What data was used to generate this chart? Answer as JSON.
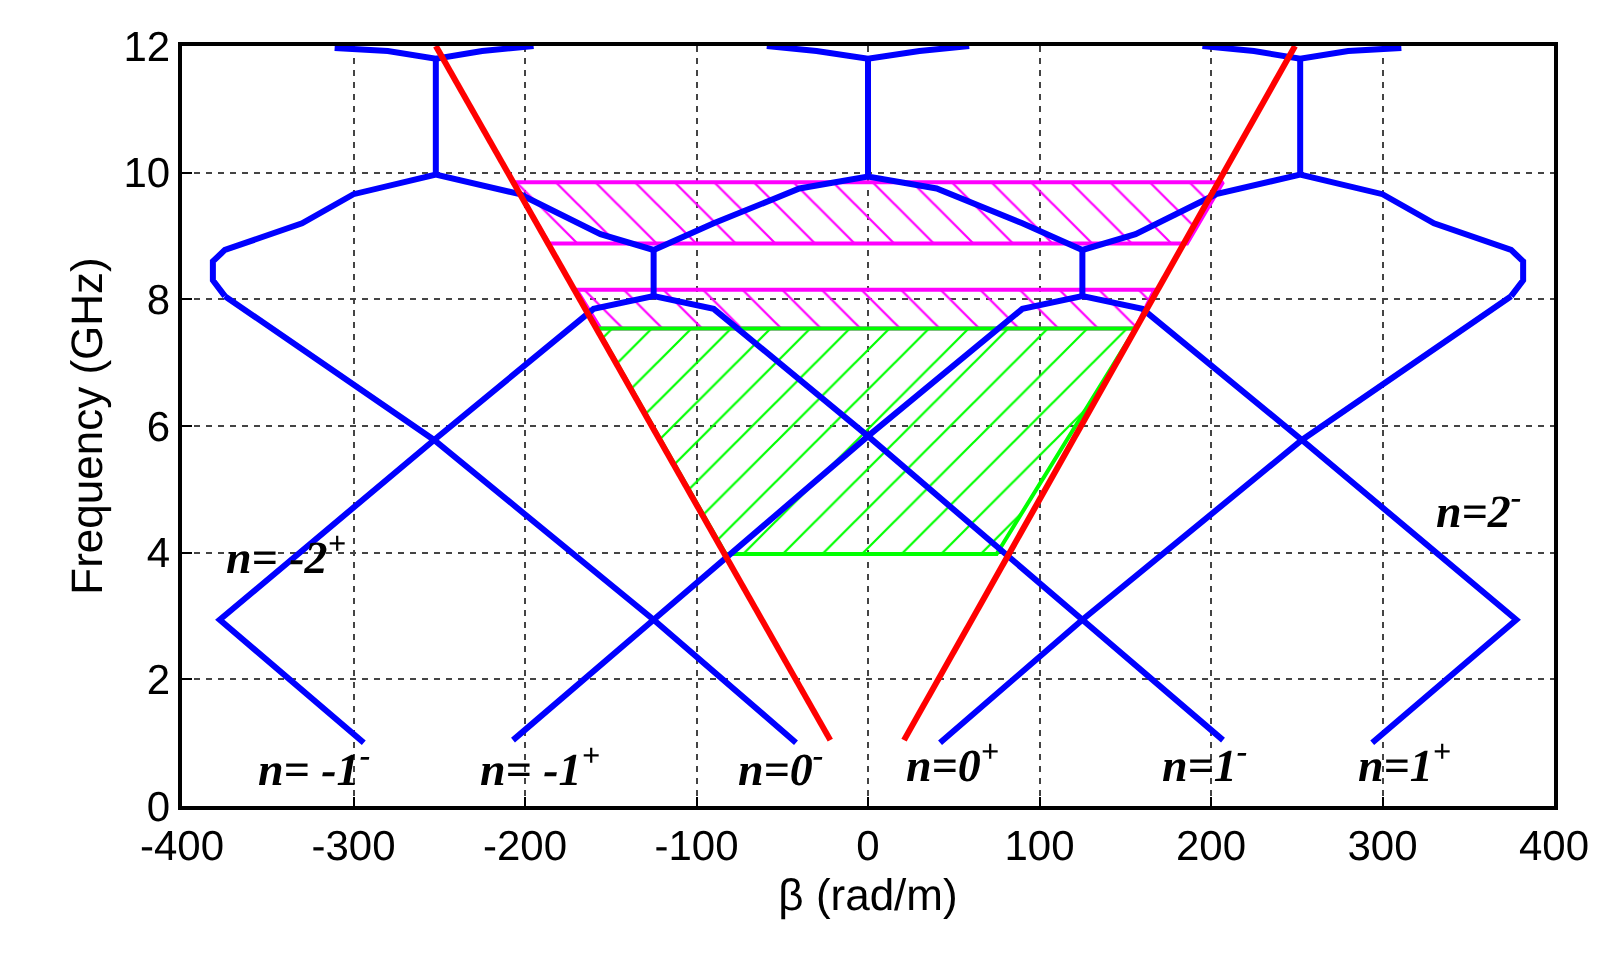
{
  "chart_data": {
    "type": "line",
    "xlabel": "β (rad/m)",
    "ylabel": "Frequency (GHz)",
    "xlim": [
      -400,
      400
    ],
    "ylim": [
      0,
      12
    ],
    "xticks": [
      -400,
      -300,
      -200,
      -100,
      0,
      100,
      200,
      300,
      400
    ],
    "yticks": [
      0,
      2,
      4,
      6,
      8,
      10,
      12
    ],
    "grid": true,
    "series": [
      {
        "type": "area",
        "color": "#ff00ff",
        "x": [
          -207,
          207,
          186,
          -186,
          -207
        ],
        "values": [
          9.85,
          9.85,
          8.88,
          8.88,
          9.85
        ]
      },
      {
        "type": "area",
        "color": "#ff00ff",
        "x": [
          -170,
          167,
          156,
          -156,
          -170
        ],
        "values": [
          8.15,
          8.15,
          7.54,
          7.54,
          8.15
        ]
      },
      {
        "type": "area",
        "color": "#00ff00",
        "x": [
          -158,
          156,
          75,
          -83,
          -158
        ],
        "values": [
          7.54,
          7.54,
          3.98,
          3.98,
          7.54
        ]
      },
      {
        "color": "#0000ff",
        "x": [
          -294,
          -378,
          -253,
          -160,
          -125,
          -90,
          0,
          125,
          207,
          null,
          294,
          378,
          253,
          160,
          125,
          90,
          0,
          -125,
          -207,
          null,
          -375,
          -253,
          -125,
          -42,
          null,
          375,
          253,
          125,
          42,
          null,
          -375,
          -382,
          -382,
          -375,
          -330,
          -300,
          -252,
          -203,
          -156,
          -125,
          -90,
          -40,
          0,
          40,
          90,
          125,
          156,
          203,
          252,
          300,
          330,
          375,
          382,
          382,
          375,
          null,
          -125,
          -125,
          null,
          125,
          125,
          null,
          -252,
          -252,
          null,
          0,
          0,
          null,
          252,
          252,
          null,
          -311,
          -280,
          -252,
          -225,
          -195,
          null,
          -59,
          -30,
          0,
          30,
          59,
          null,
          195,
          225,
          252,
          280,
          311
        ],
        "values": [
          1.0,
          2.94,
          5.78,
          7.85,
          8.05,
          7.85,
          5.84,
          2.94,
          1.04,
          null,
          1.0,
          2.94,
          5.78,
          7.85,
          8.05,
          7.85,
          5.84,
          2.94,
          1.04,
          null,
          8.05,
          5.78,
          2.94,
          1.0,
          null,
          8.05,
          5.78,
          2.94,
          1.0,
          null,
          8.05,
          8.3,
          8.6,
          8.78,
          9.2,
          9.66,
          9.97,
          9.66,
          9.03,
          8.78,
          9.2,
          9.75,
          9.94,
          9.75,
          9.2,
          8.78,
          9.03,
          9.66,
          9.97,
          9.66,
          9.2,
          8.78,
          8.6,
          8.3,
          8.05,
          null,
          8.05,
          8.78,
          null,
          8.05,
          8.78,
          null,
          9.97,
          11.8,
          null,
          9.94,
          11.8,
          null,
          9.97,
          11.8,
          null,
          11.97,
          11.92,
          11.8,
          11.92,
          12,
          null,
          12,
          11.92,
          11.8,
          11.92,
          12,
          null,
          12,
          11.92,
          11.8,
          11.92,
          11.97
        ]
      },
      {
        "color": "#ff0000",
        "x": [
          -252,
          -22
        ],
        "values": [
          12,
          1.04
        ]
      },
      {
        "color": "#ff0000",
        "x": [
          21,
          249
        ],
        "values": [
          1.04,
          12
        ]
      }
    ],
    "annotations": [
      "n= -2$^{+}$",
      "n=2$^{-}$",
      "n= -1$^{-}$",
      "n= -1$^{+}$",
      "n=0$^{-}$",
      "n=0$^{+}$",
      "n=1$^{-}$",
      "n=1$^{+}$"
    ]
  }
}
